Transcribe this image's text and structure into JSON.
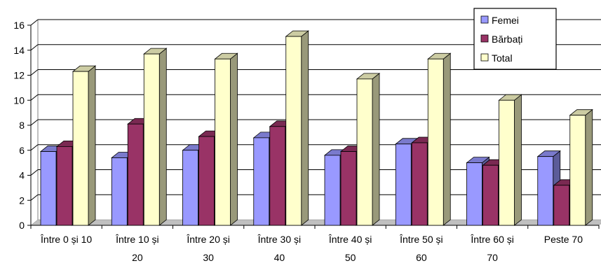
{
  "chart_data": {
    "type": "bar",
    "title": "",
    "xlabel": "",
    "ylabel": "",
    "ylim": [
      0,
      16
    ],
    "yticks": [
      0,
      2,
      4,
      6,
      8,
      10,
      12,
      14,
      16
    ],
    "grid": true,
    "legend_position": "top-right",
    "categories": [
      [
        "Între 0 și 10"
      ],
      [
        "Între 10 și",
        "20"
      ],
      [
        "Între 20 și",
        "30"
      ],
      [
        "Între 30 și",
        "40"
      ],
      [
        "Între 40 și",
        "50"
      ],
      [
        "Între 50 și",
        "60"
      ],
      [
        "Între 60 și",
        "70"
      ],
      [
        "Peste 70"
      ]
    ],
    "series": [
      {
        "name": "Femei",
        "color": "#9999ff",
        "values": [
          5.9,
          5.4,
          6.0,
          7.0,
          5.6,
          6.5,
          5.0,
          5.5
        ]
      },
      {
        "name": "Bărbați",
        "color": "#993366",
        "values": [
          6.3,
          8.1,
          7.1,
          7.9,
          5.9,
          6.6,
          4.8,
          3.2
        ]
      },
      {
        "name": "Total",
        "color": "#ffffcc",
        "values": [
          12.3,
          13.7,
          13.3,
          15.1,
          11.7,
          13.3,
          10.0,
          8.8
        ]
      }
    ]
  }
}
